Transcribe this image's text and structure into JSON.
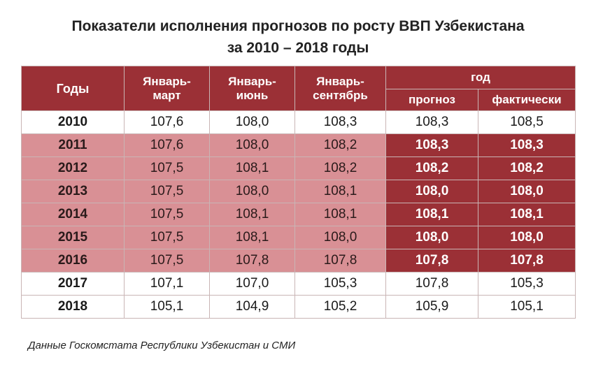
{
  "title": {
    "line1": "Показатели исполнения прогнозов по росту ВВП Узбекистана",
    "line2": "за 2010 – 2018 годы"
  },
  "table": {
    "headers": {
      "years": "Годы",
      "q1": [
        "Январь-",
        "март"
      ],
      "q2": [
        "Январь-",
        "июнь"
      ],
      "q3": [
        "Январь-",
        "сентябрь"
      ],
      "year_group": "год",
      "forecast": "прогноз",
      "actual": "фактически"
    },
    "rows": [
      {
        "year": "2010",
        "q1": "107,6",
        "q2": "108,0",
        "q3": "108,3",
        "forecast": "108,3",
        "actual": "108,5",
        "highlight": false
      },
      {
        "year": "2011",
        "q1": "107,6",
        "q2": "108,0",
        "q3": "108,2",
        "forecast": "108,3",
        "actual": "108,3",
        "highlight": true
      },
      {
        "year": "2012",
        "q1": "107,5",
        "q2": "108,1",
        "q3": "108,2",
        "forecast": "108,2",
        "actual": "108,2",
        "highlight": true
      },
      {
        "year": "2013",
        "q1": "107,5",
        "q2": "108,0",
        "q3": "108,1",
        "forecast": "108,0",
        "actual": "108,0",
        "highlight": true
      },
      {
        "year": "2014",
        "q1": "107,5",
        "q2": "108,1",
        "q3": "108,1",
        "forecast": "108,1",
        "actual": "108,1",
        "highlight": true
      },
      {
        "year": "2015",
        "q1": "107,5",
        "q2": "108,1",
        "q3": "108,0",
        "forecast": "108,0",
        "actual": "108,0",
        "highlight": true
      },
      {
        "year": "2016",
        "q1": "107,5",
        "q2": "107,8",
        "q3": "107,8",
        "forecast": "107,8",
        "actual": "107,8",
        "highlight": true
      },
      {
        "year": "2017",
        "q1": "107,1",
        "q2": "107,0",
        "q3": "105,3",
        "forecast": "107,8",
        "actual": "105,3",
        "highlight": false
      },
      {
        "year": "2018",
        "q1": "105,1",
        "q2": "104,9",
        "q3": "105,2",
        "forecast": "105,9",
        "actual": "105,1",
        "highlight": false
      }
    ]
  },
  "colors": {
    "header_bg": "#9b3036",
    "highlight_row_bg": "#d99095",
    "highlight_cell_bg": "#9b3036"
  },
  "source": "Данные Госкомстата  Республики Узбекистан и СМИ"
}
